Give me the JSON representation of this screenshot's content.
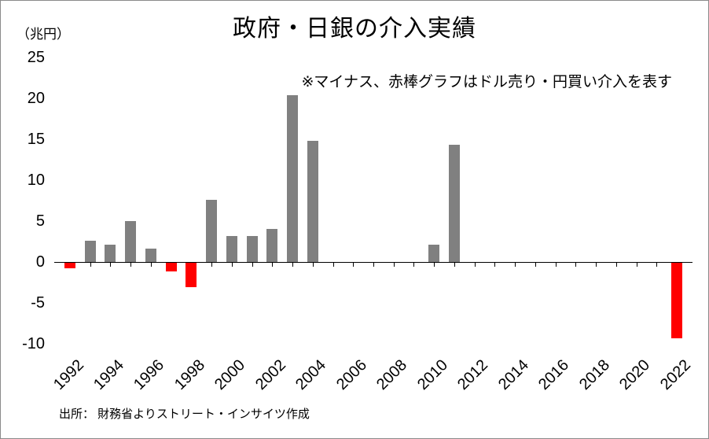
{
  "chart_data": {
    "type": "bar",
    "title": "政府・日銀の介入実績",
    "unit_label": "（兆円）",
    "annotation": "※マイナス、赤棒グラフはドル売り・円買い介入を表す",
    "source": "出所： 財務省よりストリート・インサイツ作成",
    "ylim": [
      -10,
      25
    ],
    "yticks": [
      25,
      20,
      15,
      10,
      5,
      0,
      -5,
      -10
    ],
    "x_year_range": [
      1992,
      2022
    ],
    "xtick_labels": [
      "1992",
      "1994",
      "1996",
      "1998",
      "2000",
      "2002",
      "2004",
      "2006",
      "2008",
      "2010",
      "2012",
      "2014",
      "2016",
      "2018",
      "2020",
      "2022"
    ],
    "grid": false,
    "legend": "none",
    "colors": {
      "positive_bar": "#808080",
      "negative_bar": "#FF0000"
    },
    "points": [
      {
        "year": 1992,
        "value": -0.7
      },
      {
        "year": 1993,
        "value": 2.6
      },
      {
        "year": 1994,
        "value": 2.1
      },
      {
        "year": 1995,
        "value": 5.0
      },
      {
        "year": 1996,
        "value": 1.6
      },
      {
        "year": 1997,
        "value": -1.1
      },
      {
        "year": 1998,
        "value": -3.0
      },
      {
        "year": 1999,
        "value": 7.6
      },
      {
        "year": 2000,
        "value": 3.2
      },
      {
        "year": 2001,
        "value": 3.2
      },
      {
        "year": 2002,
        "value": 4.0
      },
      {
        "year": 2003,
        "value": 20.4
      },
      {
        "year": 2004,
        "value": 14.8
      },
      {
        "year": 2010,
        "value": 2.1
      },
      {
        "year": 2011,
        "value": 14.3
      },
      {
        "year": 2022,
        "value": -9.2
      }
    ]
  }
}
